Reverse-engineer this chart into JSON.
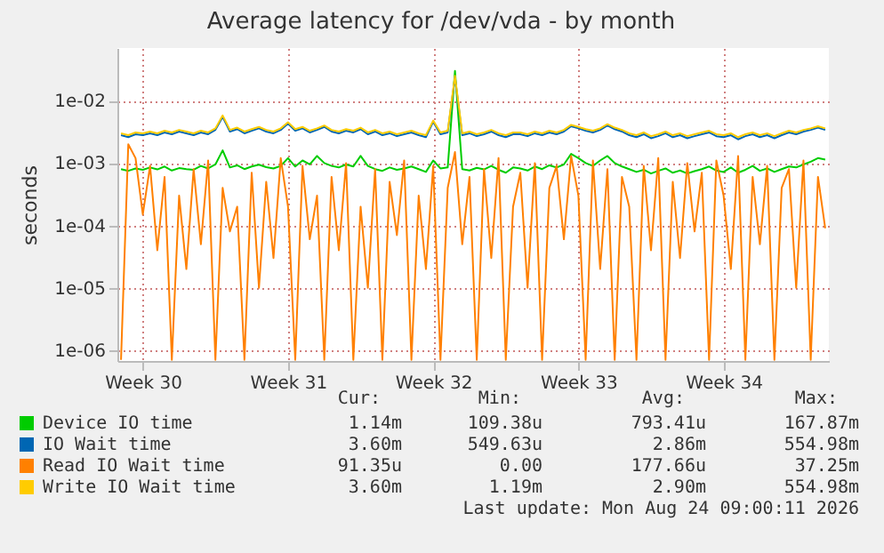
{
  "chart_data": {
    "type": "line",
    "title": "Average latency for /dev/vda - by month",
    "ylabel": "seconds",
    "log": "y",
    "grid": true,
    "legend": "bottom",
    "categories": [
      null,
      null,
      null,
      "Week 30",
      null,
      null,
      null,
      null,
      null,
      null,
      null,
      null,
      null,
      null,
      null,
      null,
      null,
      null,
      null,
      null,
      null,
      null,
      null,
      "Week 31",
      null,
      null,
      null,
      null,
      null,
      null,
      null,
      null,
      null,
      null,
      null,
      null,
      null,
      null,
      null,
      null,
      null,
      null,
      null,
      "Week 32",
      null,
      null,
      null,
      null,
      null,
      null,
      null,
      null,
      null,
      null,
      null,
      null,
      null,
      null,
      null,
      null,
      null,
      null,
      null,
      "Week 33",
      null,
      null,
      null,
      null,
      null,
      null,
      null,
      null,
      null,
      null,
      null,
      null,
      null,
      null,
      null,
      null,
      null,
      null,
      null,
      "Week 34",
      null,
      null,
      null,
      null,
      null,
      null,
      null,
      null,
      null,
      null,
      null,
      null,
      null,
      null
    ],
    "ylim": [
      6.7e-07,
      0.07
    ],
    "yticks": [
      {
        "value": 1e-06,
        "label": "1e-06"
      },
      {
        "value": 1e-05,
        "label": "1e-05"
      },
      {
        "value": 0.0001,
        "label": "1e-04"
      },
      {
        "value": 0.001,
        "label": "1e-03"
      },
      {
        "value": 0.01,
        "label": "1e-02"
      }
    ],
    "series": [
      {
        "name": "Device IO time",
        "color": "#00cc00",
        "values": [
          0.0008,
          0.00075,
          0.00082,
          0.00078,
          0.00085,
          0.00079,
          0.00088,
          0.00076,
          0.00083,
          0.0008,
          0.00078,
          0.0009,
          0.00082,
          0.00095,
          0.0016,
          0.00085,
          0.00092,
          0.0008,
          0.00088,
          0.00094,
          0.00086,
          0.00082,
          0.0009,
          0.0012,
          0.00088,
          0.0011,
          0.00095,
          0.0013,
          0.001,
          0.0009,
          0.00085,
          0.00095,
          0.00088,
          0.0013,
          0.0009,
          0.0008,
          0.00075,
          0.00085,
          0.00078,
          0.00082,
          0.00088,
          0.0008,
          0.00072,
          0.0011,
          0.00082,
          0.00085,
          0.03,
          0.0008,
          0.00076,
          0.00084,
          0.00079,
          0.0009,
          0.00078,
          0.0007,
          0.00085,
          0.00082,
          0.00076,
          0.00088,
          0.0008,
          0.00092,
          0.00085,
          0.00095,
          0.0014,
          0.0012,
          0.001,
          0.0009,
          0.0011,
          0.0013,
          0.001,
          0.00088,
          0.0008,
          0.00072,
          0.00078,
          0.00068,
          0.00075,
          0.00082,
          0.0007,
          0.00076,
          0.00068,
          0.00074,
          0.0008,
          0.00088,
          0.00076,
          0.00072,
          0.00085,
          0.0007,
          0.00078,
          0.0009,
          0.00075,
          0.00082,
          0.00072,
          0.0008,
          0.00088,
          0.00085,
          0.00095,
          0.00105,
          0.0012,
          0.00114
        ]
      },
      {
        "name": "IO Wait time",
        "color": "#0066b3",
        "values": [
          0.0028,
          0.0026,
          0.0029,
          0.0028,
          0.003,
          0.0028,
          0.0031,
          0.0029,
          0.0032,
          0.003,
          0.0028,
          0.0031,
          0.0029,
          0.0034,
          0.0055,
          0.0032,
          0.0035,
          0.003,
          0.0033,
          0.0036,
          0.0032,
          0.003,
          0.0034,
          0.0043,
          0.0033,
          0.0036,
          0.0031,
          0.0034,
          0.0038,
          0.0032,
          0.003,
          0.0033,
          0.0031,
          0.0035,
          0.0029,
          0.0032,
          0.0028,
          0.003,
          0.0027,
          0.0029,
          0.0031,
          0.0028,
          0.0026,
          0.0046,
          0.0029,
          0.0031,
          0.024,
          0.0028,
          0.003,
          0.0027,
          0.0029,
          0.0032,
          0.0028,
          0.0026,
          0.0029,
          0.0029,
          0.0027,
          0.003,
          0.0028,
          0.0031,
          0.0029,
          0.0032,
          0.0039,
          0.0036,
          0.0033,
          0.0031,
          0.0034,
          0.004,
          0.0035,
          0.0032,
          0.0028,
          0.0026,
          0.0029,
          0.0025,
          0.0027,
          0.003,
          0.0026,
          0.0028,
          0.0025,
          0.0027,
          0.0029,
          0.0031,
          0.0027,
          0.0026,
          0.0028,
          0.0024,
          0.0027,
          0.0029,
          0.0026,
          0.0028,
          0.0025,
          0.0028,
          0.0031,
          0.0029,
          0.0032,
          0.0034,
          0.0037,
          0.0034
        ]
      },
      {
        "name": "Read IO Wait time",
        "color": "#ff8000",
        "values": [
          7e-07,
          0.002,
          0.0012,
          0.00015,
          0.0009,
          4e-05,
          0.0006,
          7e-07,
          0.0003,
          2e-05,
          0.0008,
          5e-05,
          0.0011,
          7e-07,
          0.0004,
          8e-05,
          0.0002,
          7e-07,
          0.0007,
          1e-05,
          0.0005,
          3e-05,
          0.0012,
          0.0002,
          7e-07,
          0.0009,
          6e-05,
          0.0003,
          7e-07,
          0.0006,
          4e-05,
          0.001,
          7e-07,
          0.0002,
          1e-05,
          0.0008,
          7e-07,
          0.0005,
          7e-05,
          0.0011,
          7e-07,
          0.0003,
          2e-05,
          0.0009,
          7e-07,
          0.0004,
          0.0015,
          5e-05,
          0.0006,
          7e-07,
          0.0008,
          3e-05,
          0.0012,
          7e-07,
          0.0002,
          0.0007,
          1e-05,
          0.001,
          7e-07,
          0.0004,
          0.0009,
          6e-05,
          0.0013,
          0.0003,
          7e-07,
          0.0011,
          2e-05,
          0.0008,
          7e-07,
          0.0006,
          0.0002,
          7e-07,
          0.0009,
          4e-05,
          0.0012,
          7e-07,
          0.0005,
          3e-05,
          0.001,
          8e-05,
          0.0007,
          7e-07,
          0.0011,
          0.0003,
          2e-05,
          0.0013,
          7e-07,
          0.0006,
          5e-05,
          0.0009,
          7e-07,
          0.0004,
          0.0008,
          1e-05,
          0.0011,
          7e-07,
          0.0006,
          9e-05
        ]
      },
      {
        "name": "Write IO Wait time",
        "color": "#ffcc00",
        "values": [
          0.003,
          0.0028,
          0.0031,
          0.003,
          0.0032,
          0.003,
          0.0033,
          0.0031,
          0.0034,
          0.0032,
          0.003,
          0.0033,
          0.0031,
          0.0036,
          0.0058,
          0.0034,
          0.0037,
          0.0032,
          0.0035,
          0.0038,
          0.0034,
          0.0032,
          0.0036,
          0.0045,
          0.0035,
          0.0038,
          0.0033,
          0.0036,
          0.004,
          0.0034,
          0.0032,
          0.0035,
          0.0033,
          0.0037,
          0.0031,
          0.0034,
          0.003,
          0.0032,
          0.0029,
          0.0031,
          0.0033,
          0.003,
          0.0028,
          0.0048,
          0.0031,
          0.0033,
          0.025,
          0.003,
          0.0032,
          0.0029,
          0.0031,
          0.0034,
          0.003,
          0.0028,
          0.0031,
          0.0031,
          0.0029,
          0.0032,
          0.003,
          0.0033,
          0.0031,
          0.0034,
          0.0041,
          0.0038,
          0.0035,
          0.0033,
          0.0036,
          0.0042,
          0.0037,
          0.0034,
          0.003,
          0.0028,
          0.0031,
          0.0027,
          0.0029,
          0.0032,
          0.0028,
          0.003,
          0.0027,
          0.0029,
          0.0031,
          0.0033,
          0.0029,
          0.0028,
          0.003,
          0.0026,
          0.0029,
          0.0031,
          0.0028,
          0.003,
          0.0027,
          0.003,
          0.0033,
          0.0031,
          0.0034,
          0.0036,
          0.0039,
          0.0036
        ]
      }
    ],
    "annotations": [
      "Cur:",
      "Min:",
      "Avg:",
      "Max:",
      "1.14m",
      "109.38u",
      "793.41u",
      "167.87m",
      "3.60m",
      "549.63u",
      "2.86m",
      "554.98m",
      "91.35u",
      "0.00",
      "177.66u",
      "37.25m",
      "3.60m",
      "1.19m",
      "2.90m",
      "554.98m",
      "Last update: Mon Aug 24 09:00:11 2026"
    ]
  }
}
